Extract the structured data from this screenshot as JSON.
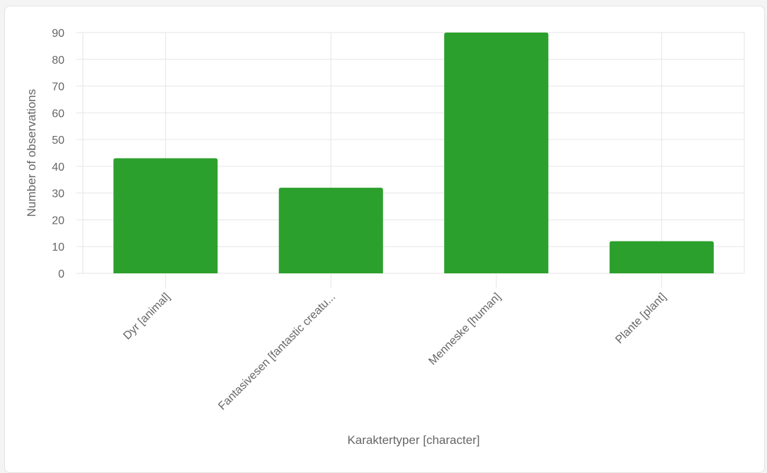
{
  "chart_data": {
    "type": "bar",
    "title": "",
    "xlabel": "Karaktertyper [character]",
    "ylabel": "Number of observations",
    "categories": [
      "Dyr [animal]",
      "Fantasivesen [fantastic creatu...",
      "Menneske [human]",
      "Plante [plant]"
    ],
    "series": [
      {
        "values": [
          43,
          32,
          90,
          12
        ],
        "color": "#2ca02c"
      }
    ],
    "ylim": [
      0,
      90
    ],
    "yticks": [
      0,
      10,
      20,
      30,
      40,
      50,
      60,
      70,
      80,
      90
    ],
    "grid": true,
    "legend": "none"
  }
}
